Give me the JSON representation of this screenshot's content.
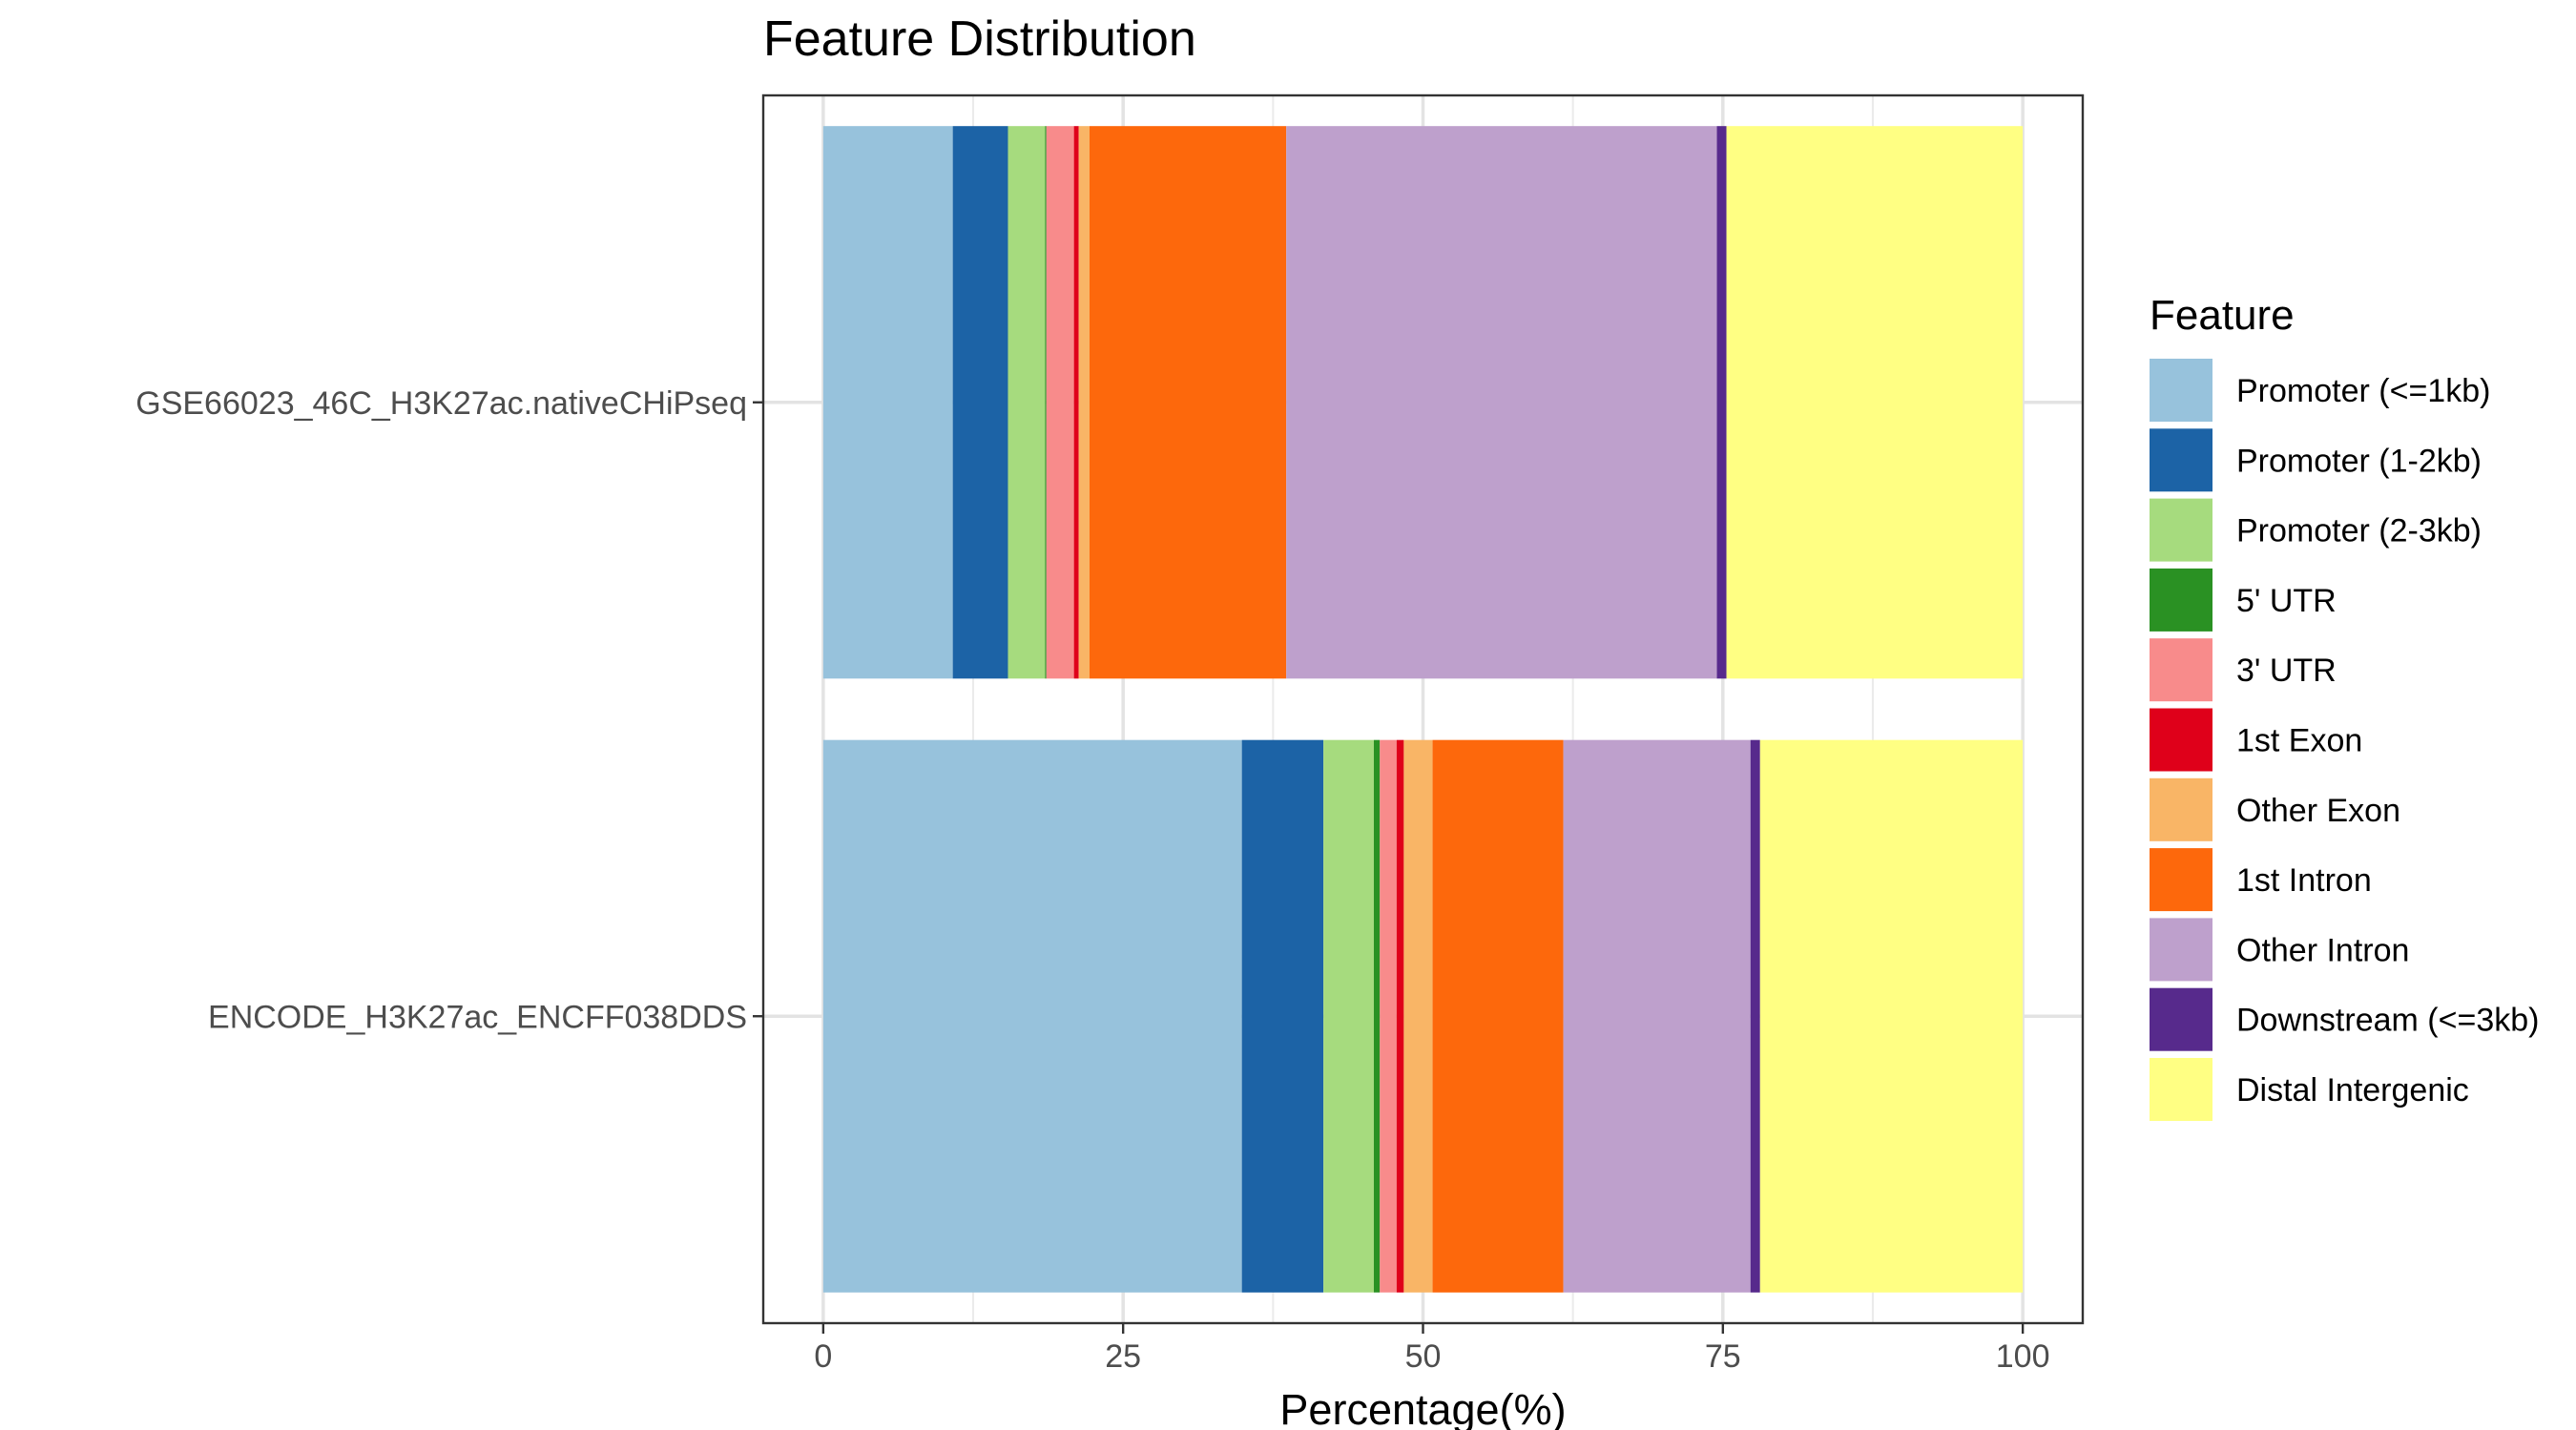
{
  "chart_data": {
    "type": "bar",
    "orientation": "horizontal",
    "stacked": true,
    "title": "Feature Distribution",
    "xlabel": "Percentage(%)",
    "ylabel": "",
    "xlim": [
      -5,
      105
    ],
    "x_ticks": [
      0,
      25,
      50,
      75,
      100
    ],
    "x_tick_labels": [
      "0",
      "25",
      "50",
      "75",
      "100"
    ],
    "grid": true,
    "legend_position": "right",
    "legend_title": "Feature",
    "categories": [
      "GSE66023_46C_H3K27ac.nativeCHiPseq",
      "ENCODE_H3K27ac_ENCFF038DDS"
    ],
    "series": [
      {
        "name": "Promoter (<=1kb)",
        "color": "#97C2DC",
        "values": [
          10.8,
          34.9
        ]
      },
      {
        "name": "Promoter (1-2kb)",
        "color": "#1C63A6",
        "values": [
          4.6,
          6.8
        ]
      },
      {
        "name": "Promoter (2-3kb)",
        "color": "#A6DB7E",
        "values": [
          3.1,
          4.2
        ]
      },
      {
        "name": "5' UTR",
        "color": "#2A9123",
        "values": [
          0.1,
          0.5
        ]
      },
      {
        "name": "3' UTR",
        "color": "#F88B8B",
        "values": [
          2.3,
          1.4
        ]
      },
      {
        "name": "1st Exon",
        "color": "#DF001A",
        "values": [
          0.4,
          0.6
        ]
      },
      {
        "name": "Other Exon",
        "color": "#F9B566",
        "values": [
          0.9,
          2.4
        ]
      },
      {
        "name": "1st Intron",
        "color": "#FD680C",
        "values": [
          16.4,
          10.9
        ]
      },
      {
        "name": "Other Intron",
        "color": "#BEA0CC",
        "values": [
          35.9,
          15.6
        ]
      },
      {
        "name": "Downstream (<=3kb)",
        "color": "#572A8C",
        "values": [
          0.8,
          0.8
        ]
      },
      {
        "name": "Distal Intergenic",
        "color": "#FFFF83",
        "values": [
          24.7,
          21.9
        ]
      }
    ]
  }
}
